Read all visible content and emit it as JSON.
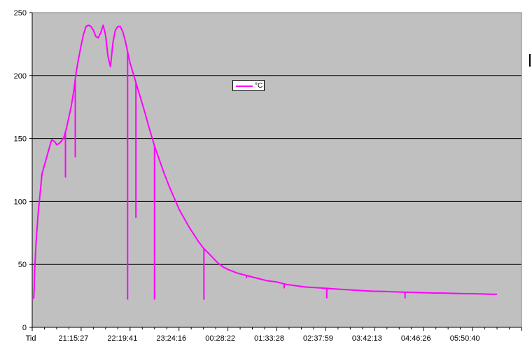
{
  "chart_data": {
    "type": "line",
    "title": "",
    "xlabel": "",
    "ylabel": "",
    "ylim": [
      0,
      250
    ],
    "yticks": [
      0,
      50,
      100,
      150,
      200,
      250
    ],
    "grid": "horizontal",
    "background": "#c0c0c0",
    "legend_position": "center-top",
    "x_tick_labels": [
      "Tid",
      "21:15:27",
      "22:19:41",
      "23:24:16",
      "00:28:22",
      "01:33:28",
      "02:37:59",
      "03:42:13",
      "04:46:26",
      "05:50:40"
    ],
    "series": [
      {
        "name": "°C",
        "color": "#ff00ff",
        "x": [
          0,
          0.02,
          0.035,
          0.05,
          0.08,
          0.12,
          0.2,
          0.28,
          0.33,
          0.38,
          0.4,
          0.44,
          0.47,
          0.5,
          0.55,
          0.6,
          0.65,
          0.7,
          0.8,
          0.85,
          0.9,
          0.95,
          1.0,
          1.05,
          1.1,
          1.15,
          1.2,
          1.25,
          1.3,
          1.35,
          1.4,
          1.45,
          1.5,
          1.55,
          1.6,
          1.65,
          1.7,
          1.75,
          1.8,
          1.85,
          1.9,
          1.95,
          2.0,
          2.1,
          2.2,
          2.3,
          2.4,
          2.5,
          2.6,
          2.7,
          2.8,
          2.9,
          3.0,
          3.1,
          3.2,
          3.3,
          3.4,
          3.5,
          3.6,
          3.7,
          3.8,
          3.9,
          4.0,
          4.2,
          4.4,
          4.6,
          4.8,
          5.0,
          5.2,
          5.4,
          5.6,
          5.8,
          6.0,
          6.2,
          6.4,
          6.6,
          6.8,
          7.0,
          7.2,
          7.4,
          7.6,
          7.8,
          8.0,
          8.2,
          8.4,
          8.6,
          8.8,
          9.0,
          9.2,
          9.4,
          9.5
        ],
        "values": [
          23,
          23,
          24,
          45,
          68,
          90,
          122,
          133,
          140,
          147,
          149,
          148,
          147,
          145,
          146,
          148,
          151,
          158,
          176,
          188,
          203,
          214,
          224,
          233,
          239,
          240,
          239,
          236,
          231,
          230,
          234,
          240,
          232,
          215,
          207,
          226,
          236,
          239,
          239,
          235,
          228,
          219,
          210,
          197,
          184,
          171,
          157,
          144,
          133,
          122,
          112,
          103,
          94,
          87,
          80,
          74,
          68,
          63,
          59,
          55,
          51,
          48,
          46,
          43,
          41,
          39,
          37,
          36,
          34,
          33,
          32,
          31.5,
          31,
          30.5,
          30,
          29.5,
          29,
          28.7,
          28.5,
          28.2,
          28,
          27.8,
          27.5,
          27.3,
          27.2,
          27,
          26.8,
          26.7,
          26.5,
          26.3,
          26.2
        ]
      }
    ],
    "dropouts": [
      {
        "x": 0.68,
        "value": 119
      },
      {
        "x": 0.88,
        "value": 135
      },
      {
        "x": 1.95,
        "value": 22
      },
      {
        "x": 2.12,
        "value": 87
      },
      {
        "x": 2.5,
        "value": 22
      },
      {
        "x": 3.51,
        "value": 22
      },
      {
        "x": 4.38,
        "value": 39
      },
      {
        "x": 5.15,
        "value": 31
      },
      {
        "x": 6.02,
        "value": 23
      },
      {
        "x": 7.62,
        "value": 23
      }
    ]
  }
}
